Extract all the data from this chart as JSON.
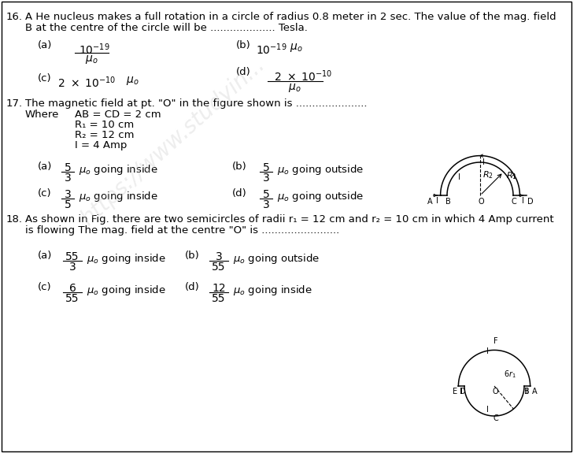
{
  "bg_color": "#ffffff",
  "q16_num": "16.",
  "q16_line1": "A He nucleus makes a full rotation in a circle of radius 0.8 meter in 2 sec. The value of the mag. field",
  "q16_line2": "B at the centre of the circle will be .................... Tesla.",
  "q17_num": "17.",
  "q17_line1": "The magnetic field at pt. \"O\" in the figure shown is ......................",
  "q17_where": "Where",
  "q17_cond1": "AB = CD = 2 cm",
  "q17_cond2": "R₁ = 10 cm",
  "q17_cond3": "R₂ = 12 cm",
  "q17_cond4": "I = 4 Amp",
  "q18_num": "18.",
  "q18_line1": "As shown in Fig. there are two semicircles of radii r₁ = 12 cm and r₂ = 10 cm in which 4 Amp current",
  "q18_line2": "is flowing The mag. field at the centre \"O\" is ........................",
  "font_size_main": 9.5,
  "font_size_option": 9.5,
  "font_size_math": 10
}
